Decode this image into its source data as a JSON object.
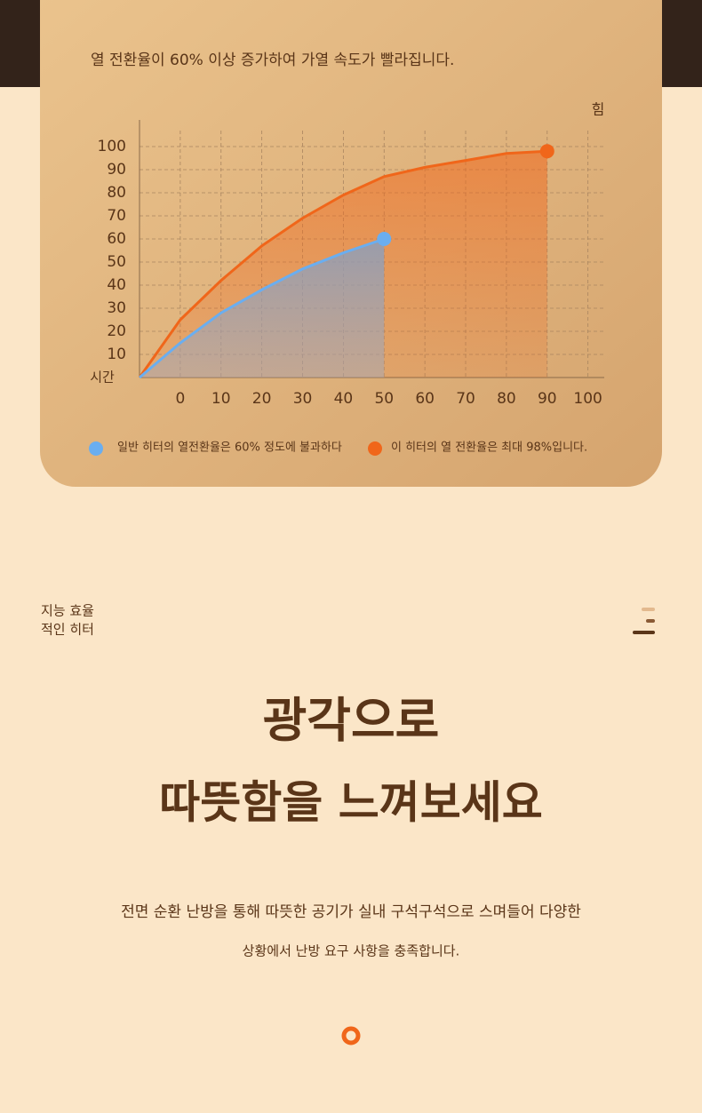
{
  "chart_data": {
    "type": "line",
    "title": "열 전환율이 60% 이상 증가하여 가열 속도가 빨라집니다.",
    "x_label": "시간",
    "y_label": "힘",
    "x": [
      -10,
      0,
      10,
      20,
      30,
      40,
      50,
      60,
      70,
      80,
      90
    ],
    "series": [
      {
        "name": "일반 히터의 열전환율은 60% 정도에 불과하다",
        "color": "#6aaef0",
        "values": [
          0,
          15,
          28,
          38,
          47,
          54,
          60,
          null,
          null,
          null,
          null
        ]
      },
      {
        "name": "이 히터의 열 전환율은 최대 98%입니다.",
        "color": "#f0661a",
        "values": [
          0,
          25,
          42,
          57,
          69,
          79,
          87,
          91,
          94,
          97,
          98
        ]
      }
    ],
    "xlim": [
      -10,
      104
    ],
    "ylim": [
      0,
      110
    ],
    "xticks": [
      0,
      10,
      20,
      30,
      40,
      50,
      60,
      70,
      80,
      90,
      100
    ],
    "yticks": [
      10,
      20,
      30,
      40,
      50,
      60,
      70,
      80,
      90,
      100
    ],
    "grid": true
  },
  "section": {
    "side_label": [
      "지능 효율",
      "적인 히터"
    ],
    "headline": [
      "광각으로",
      "따뜻함을 느껴보세요"
    ],
    "body": [
      "전면 순환 난방을 통해 따뜻한 공기가 실내 구석구석으로 스며들어 다양한",
      "상황에서 난방 요구 사항을 충족합니다."
    ]
  }
}
